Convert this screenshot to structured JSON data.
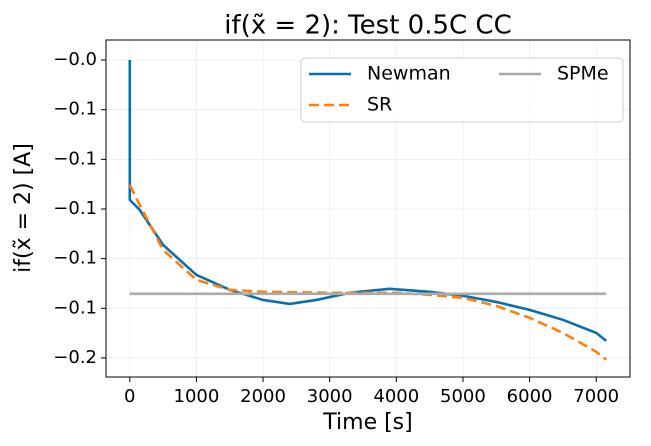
{
  "chart_data": {
    "type": "line",
    "title": "if(x̃ = 2): Test 0.5C CC",
    "xlabel": "Time [s]",
    "ylabel": "if(x̃ = 2) [A]",
    "xlim": [
      -357,
      7507
    ],
    "ylim": [
      -0.1846,
      -0.0149
    ],
    "xticks": [
      0,
      1000,
      2000,
      3000,
      4000,
      5000,
      6000,
      7000
    ],
    "yticks": [
      {
        "value": -0.025,
        "label": "−0.0"
      },
      {
        "value": -0.05,
        "label": "−0.1"
      },
      {
        "value": -0.075,
        "label": "−0.1"
      },
      {
        "value": -0.1,
        "label": "−0.1"
      },
      {
        "value": -0.125,
        "label": "−0.1"
      },
      {
        "value": -0.15,
        "label": "−0.1"
      },
      {
        "value": -0.175,
        "label": "−0.2"
      }
    ],
    "grid": true,
    "legend": "upper right",
    "series": [
      {
        "name": "Newman",
        "color": "#0a70ad",
        "linestyle": "solid",
        "x": [
          0,
          0,
          150,
          500,
          1000,
          1500,
          2000,
          2400,
          2800,
          3300,
          3900,
          4500,
          5000,
          5500,
          6000,
          6500,
          7000,
          7150
        ],
        "values": [
          -0.025,
          -0.0954,
          -0.1005,
          -0.1181,
          -0.1332,
          -0.1407,
          -0.1458,
          -0.1478,
          -0.1458,
          -0.1422,
          -0.1402,
          -0.1417,
          -0.1437,
          -0.1468,
          -0.1508,
          -0.1558,
          -0.1624,
          -0.1664
        ]
      },
      {
        "name": "SR",
        "color": "#ff7f0e",
        "linestyle": "dashed",
        "x": [
          0,
          150,
          500,
          1000,
          1500,
          2000,
          3000,
          4000,
          4500,
          5000,
          5500,
          6000,
          6500,
          7000,
          7150
        ],
        "values": [
          -0.0879,
          -0.098,
          -0.1206,
          -0.1357,
          -0.1407,
          -0.1417,
          -0.1422,
          -0.1422,
          -0.1432,
          -0.1447,
          -0.1488,
          -0.1548,
          -0.1624,
          -0.1719,
          -0.1759
        ]
      },
      {
        "name": "SPMe",
        "color": "#aaaaaa",
        "linestyle": "solid",
        "x": [
          0,
          7150
        ],
        "values": [
          -0.1427,
          -0.1427
        ]
      }
    ]
  }
}
